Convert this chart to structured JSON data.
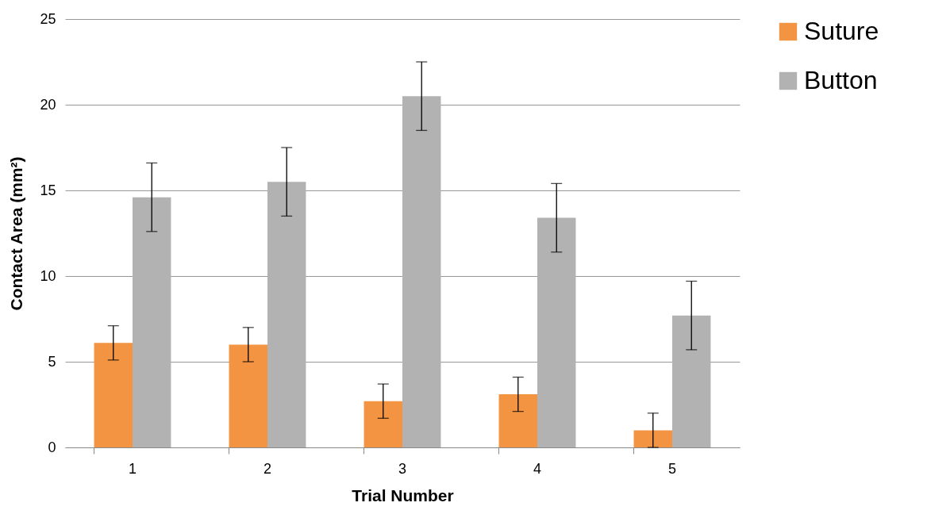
{
  "chart_data": {
    "type": "bar",
    "xlabel": "Trial Number",
    "ylabel": "Contact Area (mm²)",
    "categories": [
      "1",
      "2",
      "3",
      "4",
      "5"
    ],
    "series": [
      {
        "name": "Suture",
        "color": "#f29441",
        "values": [
          6.1,
          6.0,
          2.7,
          3.1,
          1.0
        ],
        "errors": [
          1,
          1,
          1,
          1,
          1
        ]
      },
      {
        "name": "Button",
        "color": "#b2b2b2",
        "values": [
          14.6,
          15.5,
          20.5,
          13.4,
          7.7
        ],
        "errors": [
          2,
          2,
          2,
          2,
          2
        ]
      }
    ],
    "ylim": [
      0,
      25
    ],
    "yticks": [
      0,
      5,
      10,
      15,
      20,
      25
    ],
    "grid": "y",
    "legend": "right"
  }
}
